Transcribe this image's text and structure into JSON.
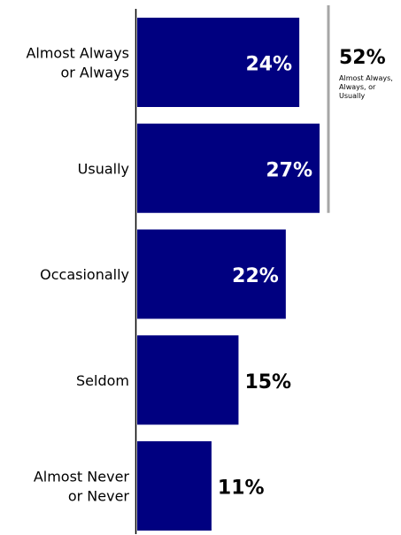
{
  "chart_data": {
    "type": "bar",
    "orientation": "horizontal",
    "categories": [
      "Almost Always or Always",
      "Usually",
      "Occasionally",
      "Seldom",
      "Almost Never or Never"
    ],
    "category_lines": [
      [
        "Almost Always",
        "or Always"
      ],
      [
        "Usually"
      ],
      [
        "Occasionally"
      ],
      [
        "Seldom"
      ],
      [
        "Almost Never",
        "or Never"
      ]
    ],
    "values": [
      24,
      27,
      22,
      15,
      11
    ],
    "value_labels": [
      "24%",
      "27%",
      "22%",
      "15%",
      "11%"
    ],
    "xlim": [
      0,
      27
    ],
    "grid": false,
    "bar_color": "#000080",
    "bracket": {
      "spans": [
        "Almost Always or Always",
        "Usually"
      ],
      "value_label": "52%",
      "caption_lines": [
        "Almost Always,",
        "Always, or",
        "Usually"
      ],
      "color": "#a6a6a6"
    }
  }
}
